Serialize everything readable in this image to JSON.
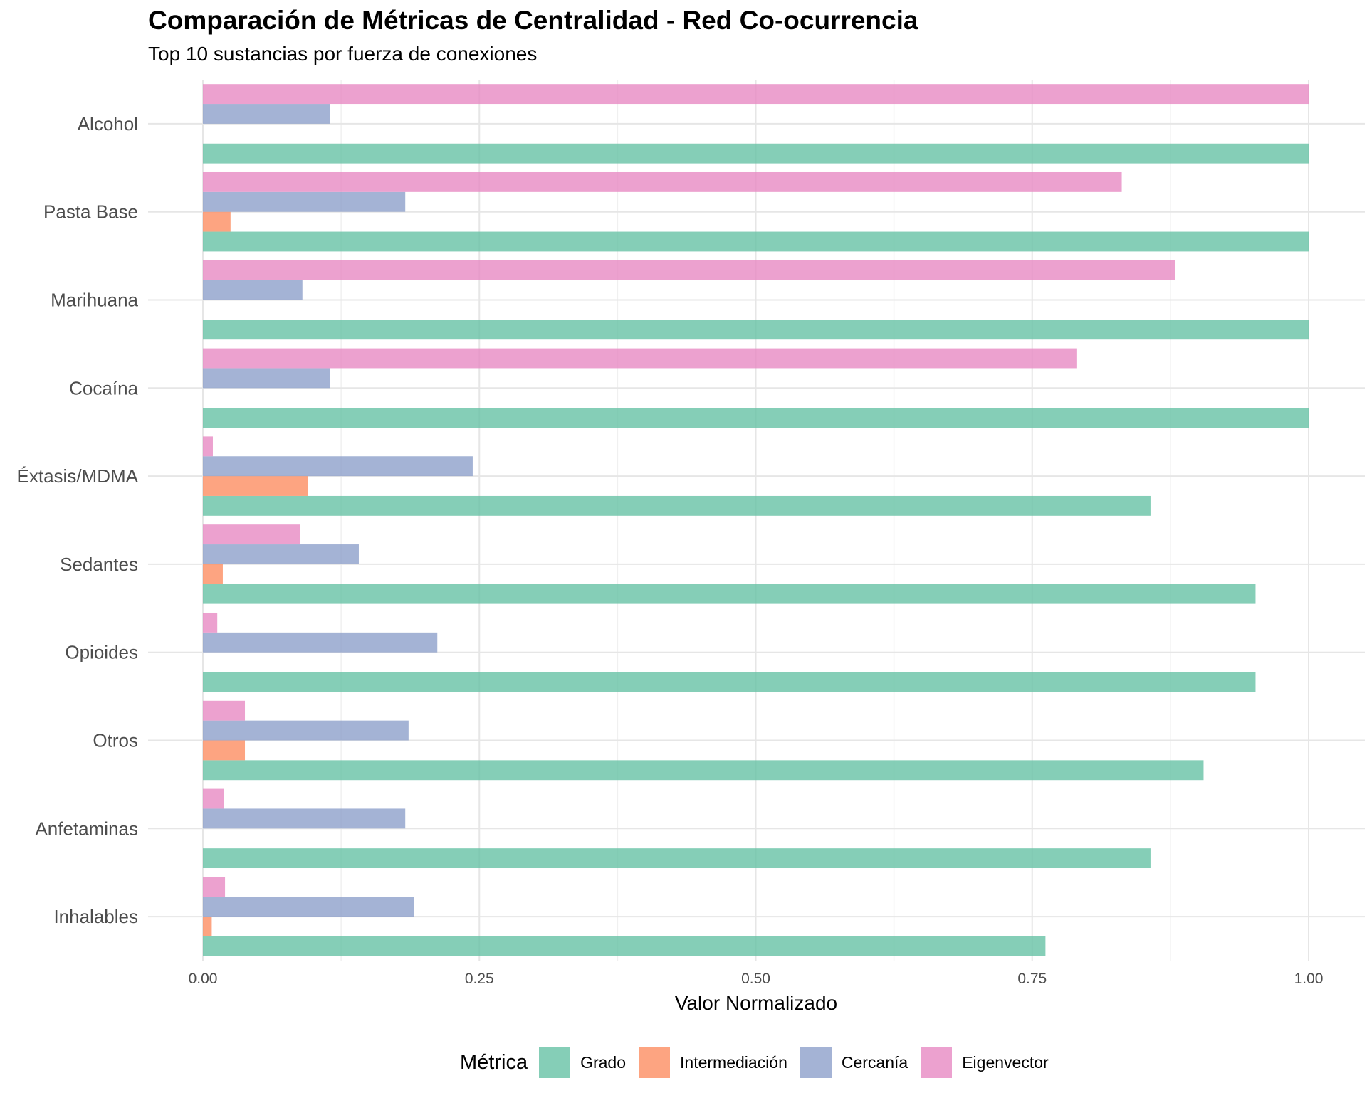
{
  "title": "Comparación de Métricas de Centralidad - Red Co-ocurrencia",
  "subtitle": "Top 10 sustancias por fuerza de conexiones",
  "chart_data": {
    "type": "bar",
    "orientation": "horizontal",
    "categories": [
      "Alcohol",
      "Pasta Base",
      "Marihuana",
      "Cocaína",
      "Éxtasis/MDMA",
      "Sedantes",
      "Opioides",
      "Otros",
      "Anfetaminas",
      "Inhalables"
    ],
    "series": [
      {
        "name": "Grado",
        "color": "#66C2A5",
        "values": [
          1.0,
          1.0,
          1.0,
          1.0,
          0.857,
          0.952,
          0.952,
          0.905,
          0.857,
          0.762
        ]
      },
      {
        "name": "Intermediación",
        "color": "#FC8D62",
        "values": [
          0,
          0.025,
          0,
          0,
          0.095,
          0.018,
          0,
          0.038,
          0,
          0.008
        ]
      },
      {
        "name": "Cercanía",
        "color": "#8DA0CB",
        "values": [
          0.115,
          0.183,
          0.09,
          0.115,
          0.244,
          0.141,
          0.212,
          0.186,
          0.183,
          0.191
        ]
      },
      {
        "name": "Eigenvector",
        "color": "#E78AC3",
        "values": [
          1.0,
          0.831,
          0.879,
          0.79,
          0.009,
          0.088,
          0.013,
          0.038,
          0.019,
          0.02
        ]
      }
    ],
    "xlabel": "Valor Normalizado",
    "ylabel": "",
    "xlim": [
      0,
      1
    ],
    "xticks": [
      0,
      0.25,
      0.5,
      0.75,
      1.0
    ],
    "xtick_labels": [
      "0.00",
      "0.25",
      "0.50",
      "0.75",
      "1.00"
    ],
    "legend_title": "Métrica",
    "legend_position": "bottom",
    "grid": true
  }
}
